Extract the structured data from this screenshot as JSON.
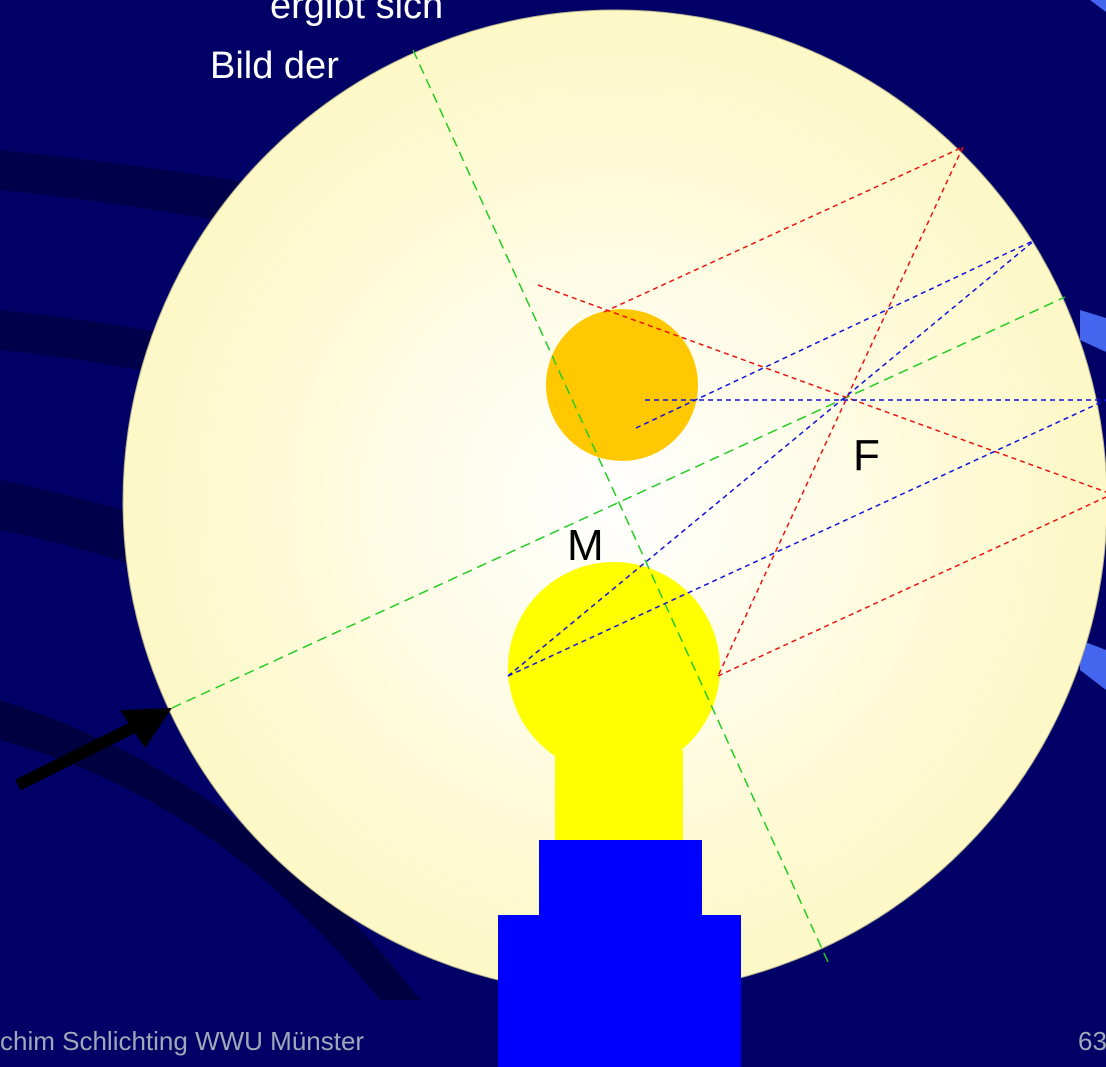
{
  "text_lines": [
    "ergibt sich",
    "Bild der"
  ],
  "labels": {
    "center": "M",
    "focus": "F"
  },
  "footer": {
    "author": "chim Schlichting WWU Münster",
    "page": "63"
  }
}
